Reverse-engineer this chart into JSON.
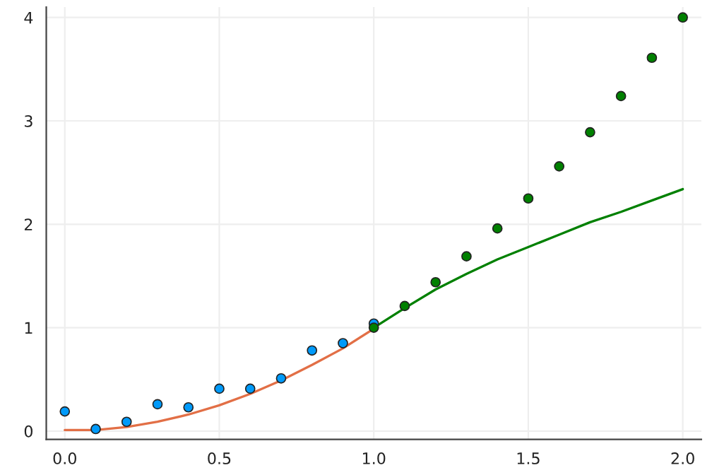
{
  "chart_data": {
    "type": "scatter",
    "series": [
      {
        "marker": "circle",
        "color": "#009afa",
        "x": [
          0.0,
          0.1,
          0.2,
          0.3,
          0.4,
          0.5,
          0.6,
          0.7,
          0.8,
          0.9,
          1.0
        ],
        "values": [
          0.19,
          0.02,
          0.09,
          0.26,
          0.23,
          0.41,
          0.41,
          0.51,
          0.78,
          0.85,
          1.04
        ]
      },
      {
        "type": "line",
        "color": "#e26f46",
        "x": [
          0.0,
          0.1,
          0.2,
          0.3,
          0.4,
          0.5,
          0.6,
          0.7,
          0.8,
          0.9,
          1.0
        ],
        "values": [
          0.01,
          0.01,
          0.04,
          0.09,
          0.16,
          0.25,
          0.36,
          0.49,
          0.64,
          0.8,
          0.99
        ]
      },
      {
        "marker": "circle",
        "color": "#008000",
        "x": [
          1.0,
          1.1,
          1.2,
          1.3,
          1.4,
          1.5,
          1.6,
          1.7,
          1.8,
          1.9,
          2.0
        ],
        "values": [
          1.0,
          1.21,
          1.44,
          1.69,
          1.96,
          2.25,
          2.56,
          2.89,
          3.24,
          3.61,
          4.0
        ]
      },
      {
        "type": "line",
        "color": "#008000",
        "x": [
          1.0,
          1.1,
          1.2,
          1.3,
          1.4,
          1.5,
          1.6,
          1.7,
          1.8,
          1.9,
          2.0
        ],
        "values": [
          1.0,
          1.19,
          1.37,
          1.52,
          1.66,
          1.78,
          1.9,
          2.02,
          2.12,
          2.23,
          2.34
        ]
      }
    ],
    "xlim": [
      -0.06,
      2.06
    ],
    "ylim": [
      -0.08,
      4.1
    ],
    "xticks": [
      {
        "value": 0,
        "label": "0.0"
      },
      0.5,
      {
        "value": 1,
        "label": "1.0"
      },
      1.5,
      {
        "value": 2,
        "label": "2.0"
      }
    ],
    "yticks": [
      0,
      1,
      2,
      3,
      4
    ],
    "grid": true
  }
}
